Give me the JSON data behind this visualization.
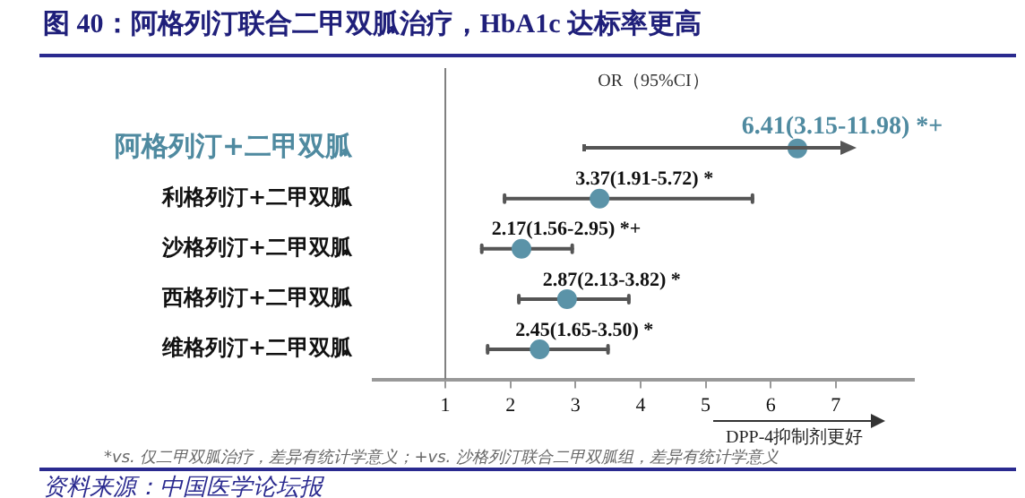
{
  "chart_data": {
    "type": "scatter",
    "title": "图 40：阿格列汀联合二甲双胍治疗，HbA1c 达标率更高",
    "xlabel": "OR（95%CI）",
    "orientation": "horizontal",
    "categories": [
      "阿格列汀+二甲双胍",
      "利格列汀+二甲双胍",
      "沙格列汀+二甲双胍",
      "西格列汀+二甲双胍",
      "维格列汀+二甲双胍"
    ],
    "values": [
      6.41,
      3.37,
      2.17,
      2.87,
      2.45
    ],
    "errors": [
      null,
      [
        1.91,
        5.72
      ],
      [
        1.56,
        2.95
      ],
      [
        2.13,
        3.82
      ],
      [
        1.65,
        3.5
      ]
    ],
    "value_labels": [
      "6.41(3.15-11.98) *+",
      "3.37(1.91-5.72) *",
      "2.17(1.56-2.95) *+",
      "2.87(2.13-3.82) *",
      "2.45(1.65-3.50) *"
    ],
    "color": "#5b93a8",
    "marker": "circle",
    "xlim": [
      -0.1,
      8.2
    ],
    "xticks": [
      1,
      2,
      3,
      4,
      5,
      6,
      7
    ],
    "ref_lines": [
      {
        "axis": "x",
        "value": 1,
        "color": "#7f7f7f"
      }
    ],
    "grid": false,
    "legend": false,
    "annotations": [
      "DPP-4抑制剂更好",
      "*vs. 仅二甲双胍治疗，差异有统计学意义；+vs. 沙格列汀联合二甲双胍组，差异有统计学意义",
      "资料来源：中国医学论坛报"
    ]
  }
}
